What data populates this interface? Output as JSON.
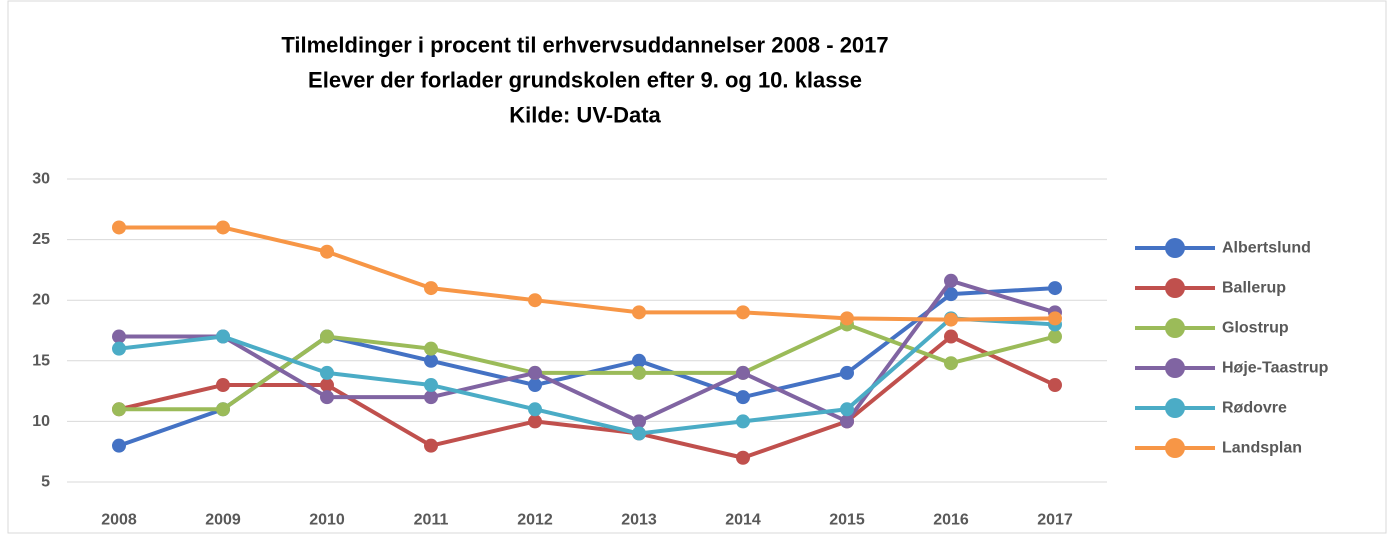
{
  "chart_data": {
    "type": "line",
    "title": [
      "Tilmeldinger i procent til erhvervsuddannelser 2008 - 2017",
      "Elever der forlader grundskolen efter 9. og 10. klasse",
      "Kilde: UV-Data"
    ],
    "categories": [
      "2008",
      "2009",
      "2010",
      "2011",
      "2012",
      "2013",
      "2014",
      "2015",
      "2016",
      "2017"
    ],
    "series": [
      {
        "name": "Albertslund",
        "color": "#4472c4",
        "values": [
          8,
          11,
          17,
          15,
          13,
          15,
          12,
          14,
          20.5,
          21
        ]
      },
      {
        "name": "Ballerup",
        "color": "#c0504d",
        "values": [
          11,
          13,
          13,
          8,
          10,
          9,
          7,
          10,
          17,
          13
        ]
      },
      {
        "name": "Glostrup",
        "color": "#9bbb59",
        "values": [
          11,
          11,
          17,
          16,
          14,
          14,
          14,
          18,
          14.8,
          17
        ]
      },
      {
        "name": "Høje-Taastrup",
        "color": "#8064a2",
        "values": [
          17,
          17,
          12,
          12,
          14,
          10,
          14,
          10,
          21.6,
          19
        ]
      },
      {
        "name": "Rødovre",
        "color": "#4bacc6",
        "values": [
          16,
          17,
          14,
          13,
          11,
          9,
          10,
          11,
          18.5,
          18
        ]
      },
      {
        "name": "Landsplan",
        "color": "#f79646",
        "values": [
          26,
          26,
          24,
          21,
          20,
          19,
          19,
          18.5,
          18.4,
          18.5
        ]
      }
    ],
    "ylim": [
      5,
      30
    ],
    "yticks": [
      5,
      10,
      15,
      20,
      25,
      30
    ],
    "grid": true,
    "legend": "right"
  }
}
